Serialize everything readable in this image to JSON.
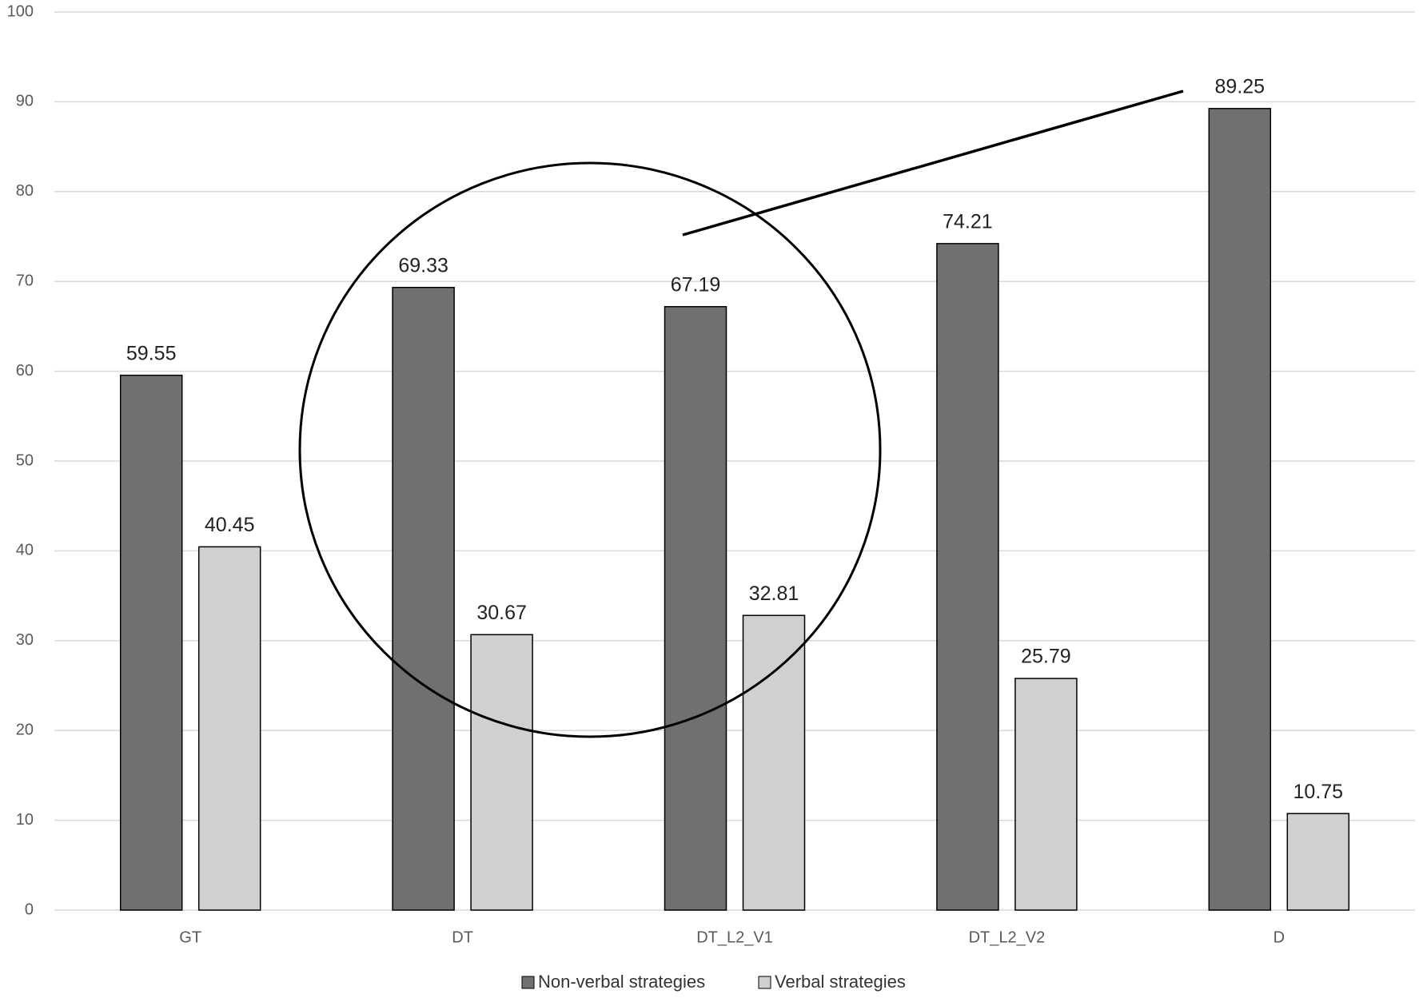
{
  "chart_data": {
    "type": "bar",
    "categories": [
      "GT",
      "DT",
      "DT_L2_V1",
      "DT_L2_V2",
      "D"
    ],
    "series": [
      {
        "name": "Non-verbal strategies",
        "color": "#707070",
        "values": [
          59.55,
          69.33,
          67.19,
          74.21,
          89.25
        ]
      },
      {
        "name": "Verbal strategies",
        "color": "#d0d0d0",
        "values": [
          40.45,
          30.67,
          32.81,
          25.79,
          10.75
        ]
      }
    ],
    "ylim": [
      0,
      100
    ],
    "yticks": [
      0,
      10,
      20,
      30,
      40,
      50,
      60,
      70,
      80,
      90,
      100
    ],
    "grid": true,
    "legend": "bottom"
  }
}
